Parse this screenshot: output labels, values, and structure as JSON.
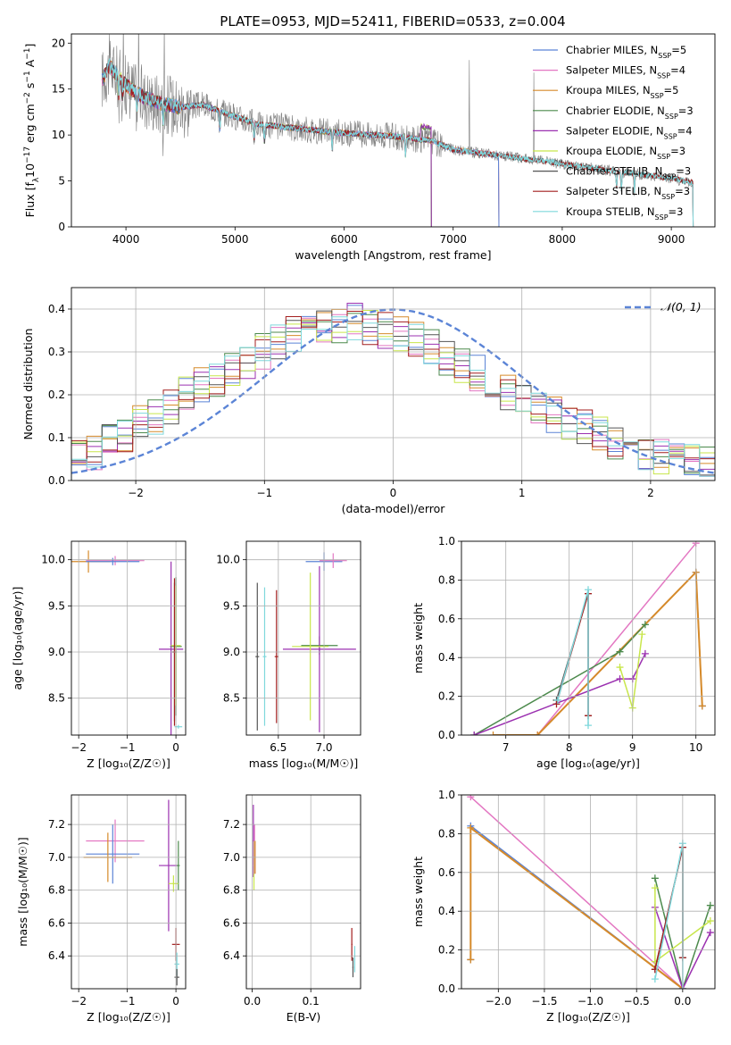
{
  "figure_title": "PLATE=0953, MJD=52411, FIBERID=0533, z=0.004",
  "colors": {
    "Chabrier MILES": "#5b84d6",
    "Salpeter MILES": "#e377c2",
    "Kroupa MILES": "#d68a2a",
    "Chabrier ELODIE": "#4c8a4c",
    "Salpeter ELODIE": "#9b30b0",
    "Kroupa ELODIE": "#c8e64b",
    "Chabrier STELIB": "#555555",
    "Salpeter STELIB": "#a31f1f",
    "Kroupa STELIB": "#7fd8dc",
    "data": "#7f7f7f",
    "normal_curve": "#5b84d6",
    "grid": "#b0b0b0"
  },
  "chart_data": [
    {
      "id": "spectrum",
      "type": "line",
      "xlabel": "wavelength [Angstrom, rest frame]",
      "ylabel_parts": [
        "Flux [f",
        "λ",
        "10",
        "−17",
        " erg cm",
        "−2",
        " s",
        "−1",
        " A",
        "−1",
        "]"
      ],
      "xlim": [
        3500,
        9400
      ],
      "ylim": [
        0,
        21
      ],
      "xticks": [
        4000,
        5000,
        6000,
        7000,
        8000,
        9000
      ],
      "yticks": [
        0,
        5,
        10,
        15,
        20
      ],
      "grid": false,
      "legend_position": "top-right",
      "legend": [
        {
          "label": "Chabrier MILES",
          "nssp": "5"
        },
        {
          "label": "Salpeter MILES",
          "nssp": "4"
        },
        {
          "label": "Kroupa MILES",
          "nssp": "5"
        },
        {
          "label": "Chabrier ELODIE",
          "nssp": "3"
        },
        {
          "label": "Salpeter ELODIE",
          "nssp": "4"
        },
        {
          "label": "Kroupa ELODIE",
          "nssp": "3"
        },
        {
          "label": "Chabrier STELIB",
          "nssp": "3"
        },
        {
          "label": "Salpeter STELIB",
          "nssp": "3"
        },
        {
          "label": "Kroupa STELIB",
          "nssp": "3"
        }
      ],
      "continuum": [
        [
          3780,
          16
        ],
        [
          3850,
          17.5
        ],
        [
          3950,
          16
        ],
        [
          4000,
          15.5
        ],
        [
          4100,
          14.5
        ],
        [
          4300,
          13.5
        ],
        [
          4500,
          13
        ],
        [
          4700,
          13.3
        ],
        [
          5000,
          12
        ],
        [
          5200,
          11.2
        ],
        [
          5500,
          10.8
        ],
        [
          6000,
          10.2
        ],
        [
          6300,
          10
        ],
        [
          6500,
          9.8
        ],
        [
          6800,
          9.4
        ],
        [
          7000,
          8.4
        ],
        [
          7400,
          7.8
        ],
        [
          7800,
          7.2
        ],
        [
          8200,
          6.5
        ],
        [
          8600,
          5.9
        ],
        [
          9000,
          5.3
        ],
        [
          9200,
          4.8
        ]
      ],
      "models_end": {
        "Chabrier MILES": 7420,
        "Salpeter MILES": 7420,
        "Kroupa MILES": 7420,
        "Chabrier ELODIE": 6800,
        "Salpeter ELODIE": 6800,
        "Kroupa ELODIE": 6800,
        "Chabrier STELIB": 9200,
        "Salpeter STELIB": 9200,
        "Kroupa STELIB": 9200
      },
      "models_start": {
        "Chabrier MILES": 3780,
        "Salpeter MILES": 3780,
        "Kroupa MILES": 3780,
        "Chabrier ELODIE": 3900,
        "Salpeter ELODIE": 3900,
        "Kroupa ELODIE": 3900,
        "Chabrier STELIB": 3790,
        "Salpeter STELIB": 3790,
        "Kroupa STELIB": 3790
      }
    },
    {
      "id": "residuals",
      "type": "step-histogram",
      "xlabel": "(data-model)/error",
      "ylabel": "Normed distribution",
      "xlim": [
        -2.5,
        2.5
      ],
      "ylim": [
        0,
        0.45
      ],
      "xticks": [
        -2,
        -1,
        0,
        1,
        2
      ],
      "yticks": [
        0.0,
        0.1,
        0.2,
        0.3,
        0.4
      ],
      "grid": true,
      "legend_position": "top-right",
      "legend_label": "𝒩(0, 1)",
      "bins": 42,
      "series_shape": [
        0.06,
        0.07,
        0.09,
        0.11,
        0.13,
        0.15,
        0.17,
        0.2,
        0.22,
        0.24,
        0.26,
        0.28,
        0.3,
        0.32,
        0.34,
        0.35,
        0.36,
        0.36,
        0.37,
        0.36,
        0.35,
        0.34,
        0.33,
        0.31,
        0.29,
        0.27,
        0.25,
        0.23,
        0.21,
        0.19,
        0.17,
        0.15,
        0.13,
        0.12,
        0.11,
        0.09,
        0.08,
        0.07,
        0.06,
        0.05,
        0.05,
        0.04
      ]
    },
    {
      "id": "age_vs_Z",
      "type": "errorbar",
      "xlabel": "Z [log₁₀(Z/Z☉)]",
      "ylabel": "age  [log₁₀(age/yr)]",
      "xlim": [
        -2.15,
        0.2
      ],
      "ylim": [
        8.1,
        10.2
      ],
      "xticks": [
        -2,
        -1,
        0
      ],
      "yticks": [
        8.5,
        9.0,
        9.5,
        10.0
      ],
      "grid": true,
      "points": [
        {
          "m": "Kroupa MILES",
          "x": -1.8,
          "y": 9.98,
          "xe": 0.45,
          "ye": 0.12
        },
        {
          "m": "Salpeter MILES",
          "x": -1.25,
          "y": 9.99,
          "xe": 0.6,
          "ye": 0.05
        },
        {
          "m": "Chabrier MILES",
          "x": -1.3,
          "y": 9.98,
          "xe": 0.55,
          "ye": 0.04
        },
        {
          "m": "Chabrier ELODIE",
          "x": 0.0,
          "y": 9.06,
          "xe": 0.12,
          "ye": 0.75
        },
        {
          "m": "Salpeter ELODIE",
          "x": -0.1,
          "y": 9.03,
          "xe": 0.25,
          "ye": 0.95
        },
        {
          "m": "Kroupa ELODIE",
          "x": 0.0,
          "y": 9.07,
          "xe": 0.1,
          "ye": 0.65
        },
        {
          "m": "Chabrier STELIB",
          "x": -0.03,
          "y": 9.0,
          "xe": 0.05,
          "ye": 0.75
        },
        {
          "m": "Kroupa STELIB",
          "x": 0.05,
          "y": 8.19,
          "xe": 0.08,
          "ye": 0.02
        },
        {
          "m": "Salpeter STELIB",
          "x": -0.03,
          "y": 9.0,
          "xe": 0.03,
          "ye": 0.8
        }
      ]
    },
    {
      "id": "age_vs_mass",
      "type": "errorbar",
      "xlabel": "mass [log₁₀(M/M☉)]",
      "ylabel": "",
      "xlim": [
        6.15,
        7.4
      ],
      "ylim": [
        8.1,
        10.2
      ],
      "xticks": [
        6.5,
        7.0
      ],
      "yticks": [
        8.5,
        9.0,
        9.5,
        10.0
      ],
      "grid": true,
      "points": [
        {
          "m": "Chabrier MILES",
          "x": 7.0,
          "y": 9.98,
          "xe": 0.2,
          "ye": 0.1
        },
        {
          "m": "Salpeter MILES",
          "x": 7.1,
          "y": 9.99,
          "xe": 0.15,
          "ye": 0.08
        },
        {
          "m": "Chabrier ELODIE",
          "x": 6.95,
          "y": 9.07,
          "xe": 0.2,
          "ye": 0.1
        },
        {
          "m": "Salpeter ELODIE",
          "x": 6.95,
          "y": 9.03,
          "xe": 0.4,
          "ye": 0.9
        },
        {
          "m": "Kroupa ELODIE",
          "x": 6.85,
          "y": 9.06,
          "xe": 0.2,
          "ye": 0.8
        },
        {
          "m": "Chabrier STELIB",
          "x": 6.27,
          "y": 8.95,
          "xe": 0.02,
          "ye": 0.8
        },
        {
          "m": "Kroupa STELIB",
          "x": 6.35,
          "y": 8.95,
          "xe": 0.02,
          "ye": 0.75
        },
        {
          "m": "Salpeter STELIB",
          "x": 6.48,
          "y": 8.95,
          "xe": 0.02,
          "ye": 0.72
        }
      ]
    },
    {
      "id": "weight_vs_age",
      "type": "line",
      "xlabel": "age  [log₁₀(age/yr)]",
      "ylabel": "mass weight",
      "xlim": [
        6.3,
        10.3
      ],
      "ylim": [
        0,
        1
      ],
      "xticks": [
        7,
        8,
        9,
        10
      ],
      "yticks": [
        0.0,
        0.2,
        0.4,
        0.6,
        0.8,
        1.0
      ],
      "grid": true,
      "series": [
        {
          "m": "Chabrier MILES",
          "x": [
            7.5,
            10.0,
            10.1
          ],
          "y": [
            0.0,
            0.84,
            0.15
          ]
        },
        {
          "m": "Salpeter MILES",
          "x": [
            7.5,
            10.0
          ],
          "y": [
            0.0,
            0.99
          ]
        },
        {
          "m": "Kroupa MILES",
          "x": [
            6.8,
            7.5,
            10.0,
            10.1
          ],
          "y": [
            0.0,
            0.0,
            0.84,
            0.15
          ]
        },
        {
          "m": "Chabrier ELODIE",
          "x": [
            6.5,
            8.8,
            9.2
          ],
          "y": [
            0.0,
            0.43,
            0.57
          ]
        },
        {
          "m": "Salpeter ELODIE",
          "x": [
            6.5,
            8.8,
            9.0,
            9.2
          ],
          "y": [
            0.0,
            0.29,
            0.29,
            0.42
          ]
        },
        {
          "m": "Kroupa ELODIE",
          "x": [
            8.8,
            9.0,
            9.15
          ],
          "y": [
            0.35,
            0.14,
            0.52
          ]
        },
        {
          "m": "Chabrier STELIB",
          "x": [
            7.8,
            8.3,
            8.3
          ],
          "y": [
            0.18,
            0.73,
            0.1
          ]
        },
        {
          "m": "Salpeter STELIB",
          "x": [
            7.8,
            8.3,
            8.3
          ],
          "y": [
            0.16,
            0.73,
            0.1
          ]
        },
        {
          "m": "Kroupa STELIB",
          "x": [
            7.82,
            8.3,
            8.3
          ],
          "y": [
            0.18,
            0.75,
            0.05
          ]
        }
      ]
    },
    {
      "id": "mass_vs_Z",
      "type": "errorbar",
      "xlabel": "Z [log₁₀(Z/Z☉)]",
      "ylabel": "mass [log₁₀(M/M☉)]",
      "xlim": [
        -2.15,
        0.2
      ],
      "ylim": [
        6.2,
        7.38
      ],
      "xticks": [
        -2,
        -1,
        0
      ],
      "yticks": [
        6.4,
        6.6,
        6.8,
        7.0,
        7.2
      ],
      "grid": true,
      "points": [
        {
          "m": "Salpeter MILES",
          "x": -1.25,
          "y": 7.1,
          "xe": 0.6,
          "ye": 0.13
        },
        {
          "m": "Chabrier MILES",
          "x": -1.3,
          "y": 7.02,
          "xe": 0.55,
          "ye": 0.18
        },
        {
          "m": "Kroupa MILES",
          "x": -1.4,
          "y": 7.0,
          "xe": 0.5,
          "ye": 0.15
        },
        {
          "m": "Salpeter ELODIE",
          "x": -0.15,
          "y": 6.95,
          "xe": 0.2,
          "ye": 0.4
        },
        {
          "m": "Chabrier ELODIE",
          "x": 0.05,
          "y": 6.95,
          "xe": 0.03,
          "ye": 0.15
        },
        {
          "m": "Kroupa ELODIE",
          "x": -0.05,
          "y": 6.84,
          "xe": 0.1,
          "ye": 0.05
        },
        {
          "m": "Salpeter STELIB",
          "x": 0.0,
          "y": 6.47,
          "xe": 0.08,
          "ye": 0.1
        },
        {
          "m": "Kroupa STELIB",
          "x": 0.02,
          "y": 6.35,
          "xe": 0.05,
          "ye": 0.07
        },
        {
          "m": "Chabrier STELIB",
          "x": 0.02,
          "y": 6.27,
          "xe": 0.05,
          "ye": 0.05
        }
      ]
    },
    {
      "id": "mass_vs_ebv",
      "type": "errorbar",
      "xlabel": "E(B-V)",
      "ylabel": "",
      "xlim": [
        -0.01,
        0.185
      ],
      "ylim": [
        6.2,
        7.38
      ],
      "xticks": [
        0.0,
        0.1
      ],
      "yticks": [
        6.4,
        6.6,
        6.8,
        7.0,
        7.2
      ],
      "grid": true,
      "points": [
        {
          "m": "Salpeter ELODIE",
          "x": 0.002,
          "y": 7.1,
          "xe": 0.001,
          "ye": 0.22
        },
        {
          "m": "Kroupa ELODIE",
          "x": 0.003,
          "y": 6.95,
          "xe": 0.001,
          "ye": 0.15
        },
        {
          "m": "Salpeter MILES",
          "x": 0.004,
          "y": 7.05,
          "xe": 0.001,
          "ye": 0.15
        },
        {
          "m": "Kroupa MILES",
          "x": 0.005,
          "y": 7.0,
          "xe": 0.001,
          "ye": 0.1
        },
        {
          "m": "Salpeter STELIB",
          "x": 0.17,
          "y": 6.47,
          "xe": 0.001,
          "ye": 0.1
        },
        {
          "m": "Kroupa STELIB",
          "x": 0.175,
          "y": 6.38,
          "xe": 0.001,
          "ye": 0.08
        },
        {
          "m": "Chabrier STELIB",
          "x": 0.172,
          "y": 6.33,
          "xe": 0.001,
          "ye": 0.06
        }
      ]
    },
    {
      "id": "weight_vs_Z",
      "type": "line",
      "xlabel": "Z [log₁₀(Z/Z☉)]",
      "ylabel": "mass weight",
      "xlim": [
        -2.4,
        0.35
      ],
      "ylim": [
        0,
        1
      ],
      "xticks": [
        -2.0,
        -1.5,
        -1.0,
        -0.5,
        0.0
      ],
      "yticks": [
        0.0,
        0.2,
        0.4,
        0.6,
        0.8,
        1.0
      ],
      "grid": true,
      "series": [
        {
          "m": "Salpeter MILES",
          "x": [
            -2.3,
            0.0
          ],
          "y": [
            0.99,
            0.0
          ]
        },
        {
          "m": "Chabrier MILES",
          "x": [
            -2.3,
            -2.3,
            0.0
          ],
          "y": [
            0.15,
            0.84,
            0.0
          ]
        },
        {
          "m": "Kroupa MILES",
          "x": [
            -2.3,
            -2.3,
            0.0
          ],
          "y": [
            0.15,
            0.83,
            0.0
          ]
        },
        {
          "m": "Chabrier ELODIE",
          "x": [
            -0.3,
            0.0,
            0.3
          ],
          "y": [
            0.57,
            0.0,
            0.43
          ]
        },
        {
          "m": "Salpeter ELODIE",
          "x": [
            -0.3,
            0.0,
            0.3
          ],
          "y": [
            0.42,
            0.0,
            0.29
          ]
        },
        {
          "m": "Kroupa ELODIE",
          "x": [
            -0.3,
            -0.3,
            0.3
          ],
          "y": [
            0.52,
            0.14,
            0.35
          ]
        },
        {
          "m": "Chabrier STELIB",
          "x": [
            -0.3,
            0.0,
            0.0
          ],
          "y": [
            0.1,
            0.73,
            0.16
          ]
        },
        {
          "m": "Salpeter STELIB",
          "x": [
            -0.3,
            0.0,
            0.0
          ],
          "y": [
            0.1,
            0.73,
            0.16
          ]
        },
        {
          "m": "Kroupa STELIB",
          "x": [
            -0.3,
            0.0,
            0.0
          ],
          "y": [
            0.05,
            0.75,
            0.0
          ]
        }
      ]
    }
  ]
}
